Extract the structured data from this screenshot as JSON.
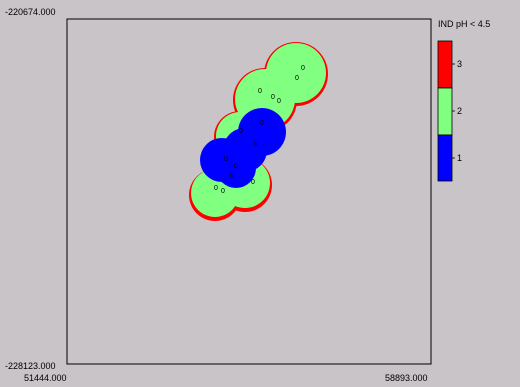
{
  "map": {
    "y_max_label": "-220674.000",
    "y_min_label": "-228123.000",
    "x_min_label": "51444.000",
    "x_max_label": "58893.000",
    "background_color": "#c8c4c8",
    "blob_colors": {
      "high": "#ff0000",
      "mid": "#80ff80",
      "low": "#0000ff"
    },
    "point_label": "0"
  },
  "legend": {
    "title": "IND pH < 4.5",
    "ticks": [
      {
        "label": "3",
        "color": "#ff0000"
      },
      {
        "label": "2",
        "color": "#80ff80"
      },
      {
        "label": "1",
        "color": "#0000ff"
      }
    ]
  }
}
